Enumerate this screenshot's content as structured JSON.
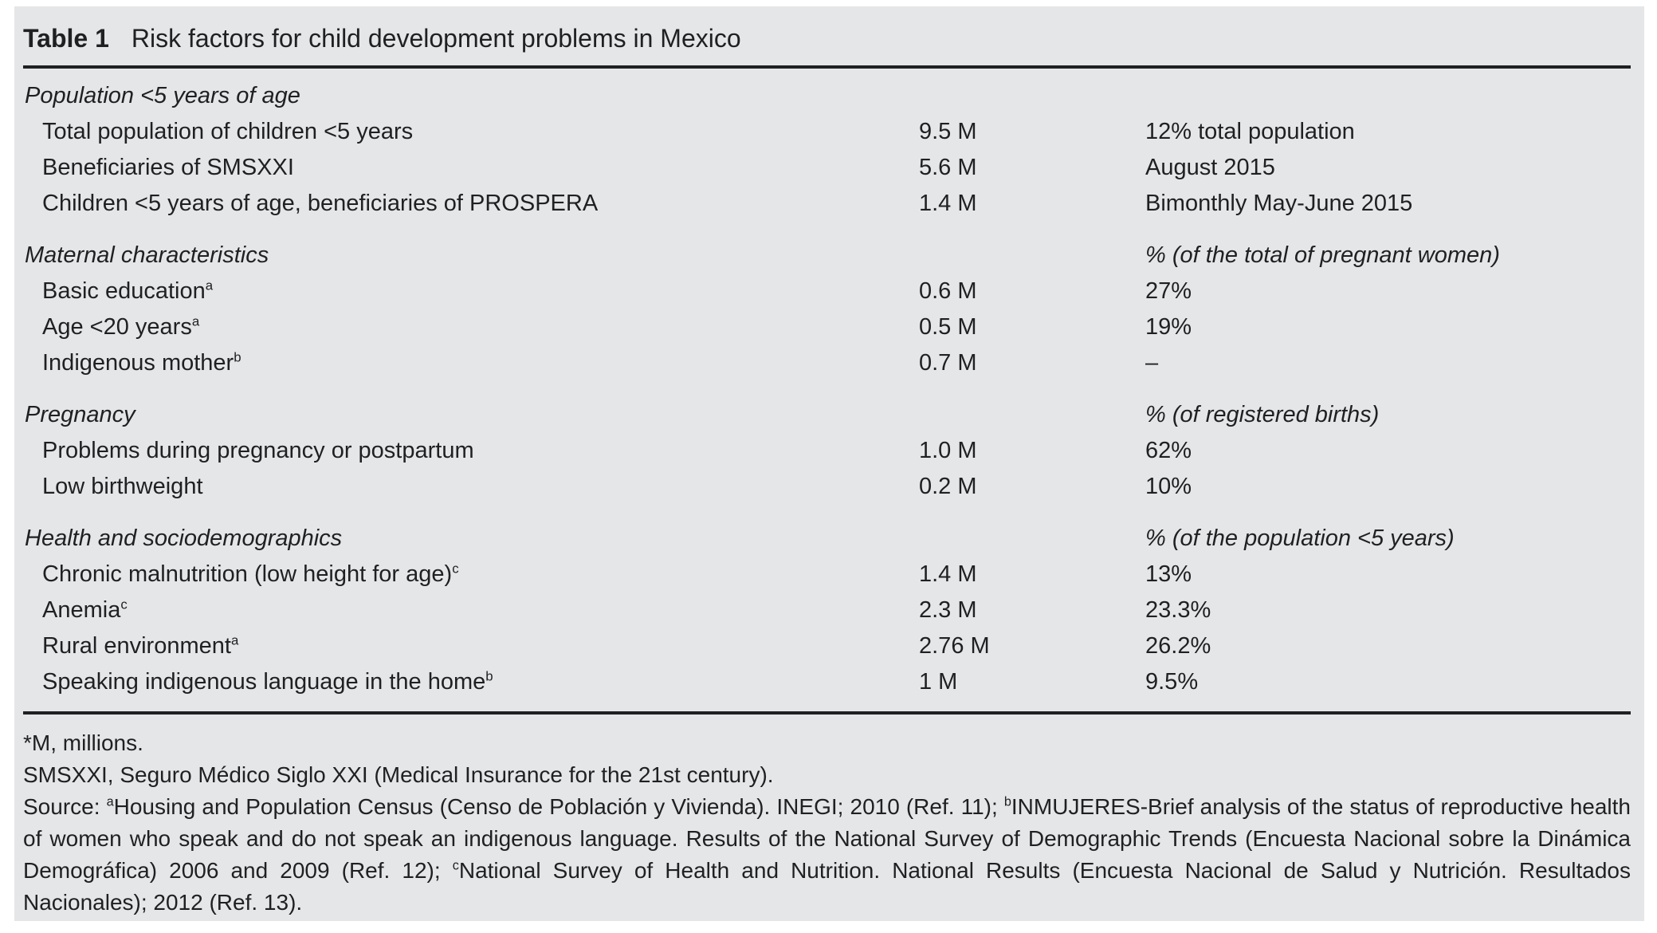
{
  "colors": {
    "panel_bg": "#e5e6e8",
    "text": "#1f2021",
    "rule": "#1f2021"
  },
  "table": {
    "label": "Table 1",
    "title": "Risk factors for child development problems in Mexico",
    "sections": [
      {
        "header": "Population <5 years of age",
        "header_note": "",
        "rows": [
          {
            "label": "Total population of children <5 years",
            "sup": "",
            "value": "9.5 M",
            "detail": "12% total population"
          },
          {
            "label": "Beneficiaries of SMSXXI",
            "sup": "",
            "value": "5.6 M",
            "detail": "August 2015"
          },
          {
            "label": "Children <5 years of age, beneficiaries of PROSPERA",
            "sup": "",
            "value": "1.4 M",
            "detail": "Bimonthly May-June 2015"
          }
        ]
      },
      {
        "header": "Maternal characteristics",
        "header_note": "% (of the total of pregnant women)",
        "rows": [
          {
            "label": "Basic education",
            "sup": "a",
            "value": "0.6 M",
            "detail": "27%"
          },
          {
            "label": "Age <20 years",
            "sup": "a",
            "value": "0.5 M",
            "detail": "19%"
          },
          {
            "label": "Indigenous mother",
            "sup": "b",
            "value": "0.7 M",
            "detail": "–"
          }
        ]
      },
      {
        "header": "Pregnancy",
        "header_note": "% (of registered births)",
        "rows": [
          {
            "label": "Problems during pregnancy or postpartum",
            "sup": "",
            "value": "1.0 M",
            "detail": "62%"
          },
          {
            "label": "Low birthweight",
            "sup": "",
            "value": "0.2 M",
            "detail": "10%"
          }
        ]
      },
      {
        "header": "Health and sociodemographics",
        "header_note": "% (of the population <5 years)",
        "rows": [
          {
            "label": "Chronic malnutrition (low height for age)",
            "sup": "c",
            "value": "1.4 M",
            "detail": "13%"
          },
          {
            "label": "Anemia",
            "sup": "c",
            "value": "2.3 M",
            "detail": "23.3%"
          },
          {
            "label": "Rural environment",
            "sup": "a",
            "value": "2.76 M",
            "detail": "26.2%"
          },
          {
            "label": "Speaking indigenous language in the home",
            "sup": "b",
            "value": "1 M",
            "detail": "9.5%"
          }
        ]
      }
    ],
    "footnotes": {
      "line1": "*M, millions.",
      "line2": "SMSXXI, Seguro Médico Siglo XXI (Medical Insurance for the 21st century).",
      "source_segments": [
        {
          "text": "Source: "
        },
        {
          "sup": "a"
        },
        {
          "text": "Housing and Population Census (Censo de Población y Vivienda). INEGI; 2010 (Ref. 11); "
        },
        {
          "sup": "b"
        },
        {
          "text": "INMUJERES-Brief analysis of the status of reproductive health of women who speak and do not speak an indigenous language. Results of the National Survey of Demographic Trends (Encuesta Nacional sobre la Dinámica Demográfica) 2006 and 2009 (Ref. 12); "
        },
        {
          "sup": "c"
        },
        {
          "text": "National Survey of Health and Nutrition. National Results (Encuesta Nacional de Salud y Nutrición. Resultados Nacionales); 2012 (Ref. 13)."
        }
      ]
    }
  }
}
